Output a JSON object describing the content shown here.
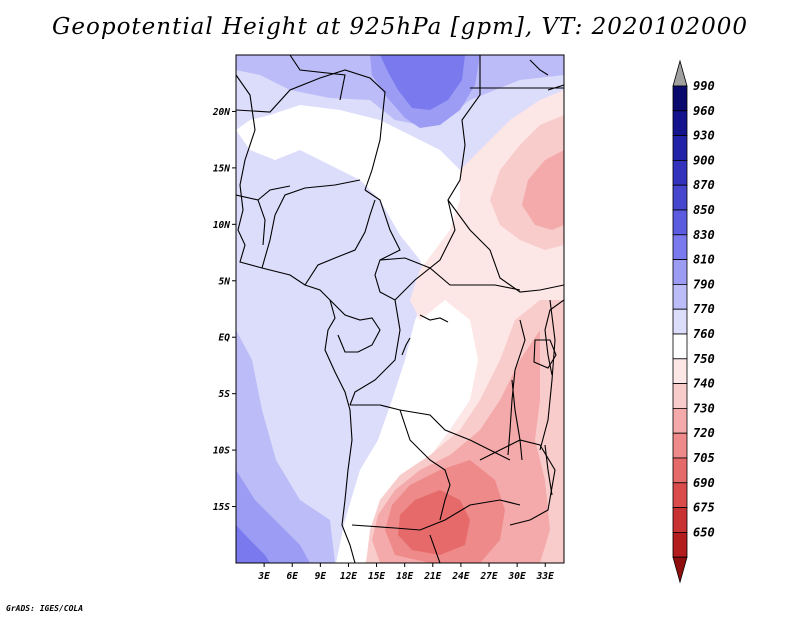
{
  "title": "Geopotential Height at 925hPa [gpm], VT: 2020102000",
  "credit": "GrADS: IGES/COLA",
  "map": {
    "lon_range": [
      0,
      35
    ],
    "lat_range": [
      -20,
      25
    ],
    "x_ticks": [
      {
        "value": 3,
        "label": "3E"
      },
      {
        "value": 6,
        "label": "6E"
      },
      {
        "value": 9,
        "label": "9E"
      },
      {
        "value": 12,
        "label": "12E"
      },
      {
        "value": 15,
        "label": "15E"
      },
      {
        "value": 18,
        "label": "18E"
      },
      {
        "value": 21,
        "label": "21E"
      },
      {
        "value": 24,
        "label": "24E"
      },
      {
        "value": 27,
        "label": "27E"
      },
      {
        "value": 30,
        "label": "30E"
      },
      {
        "value": 33,
        "label": "33E"
      }
    ],
    "y_ticks": [
      {
        "value": 20,
        "label": "20N"
      },
      {
        "value": 15,
        "label": "15N"
      },
      {
        "value": 10,
        "label": "10N"
      },
      {
        "value": 5,
        "label": "5N"
      },
      {
        "value": 0,
        "label": "EQ"
      },
      {
        "value": -5,
        "label": "5S"
      },
      {
        "value": -10,
        "label": "10S"
      },
      {
        "value": -15,
        "label": "15S"
      }
    ]
  },
  "legend": {
    "levels": [
      {
        "label": "990",
        "color": "#0a0a6e"
      },
      {
        "label": "960",
        "color": "#13138e"
      },
      {
        "label": "930",
        "color": "#2222a8"
      },
      {
        "label": "900",
        "color": "#3232bd"
      },
      {
        "label": "870",
        "color": "#4646cf"
      },
      {
        "label": "850",
        "color": "#5c5ce0"
      },
      {
        "label": "830",
        "color": "#7a7aee"
      },
      {
        "label": "810",
        "color": "#9c9cf5"
      },
      {
        "label": "790",
        "color": "#bcbcf8"
      },
      {
        "label": "770",
        "color": "#dcdcfb"
      },
      {
        "label": "760",
        "color": "#ffffff"
      },
      {
        "label": "750",
        "color": "#fde6e6"
      },
      {
        "label": "740",
        "color": "#f9cccc"
      },
      {
        "label": "730",
        "color": "#f4aaaa"
      },
      {
        "label": "720",
        "color": "#ee8a8a"
      },
      {
        "label": "705",
        "color": "#e66a6a"
      },
      {
        "label": "690",
        "color": "#da4c4c"
      },
      {
        "label": "675",
        "color": "#c93232"
      },
      {
        "label": "650",
        "color": "#b31d1d"
      }
    ],
    "top_arrow_color": "#a0a0a0",
    "bottom_arrow_color": "#8f0f0f"
  }
}
